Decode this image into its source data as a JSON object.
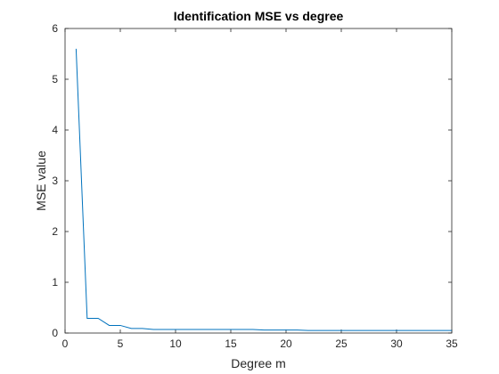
{
  "chart_data": {
    "type": "line",
    "title": "Identification MSE vs degree",
    "xlabel": "Degree m",
    "ylabel": "MSE value",
    "xlim": [
      0,
      35
    ],
    "ylim": [
      0,
      6
    ],
    "xticks": [
      0,
      5,
      10,
      15,
      20,
      25,
      30,
      35
    ],
    "yticks": [
      0,
      1,
      2,
      3,
      4,
      5,
      6
    ],
    "grid": false,
    "series": [
      {
        "color": "#0072bd",
        "x": [
          1,
          2,
          3,
          4,
          5,
          6,
          7,
          8,
          9,
          10,
          11,
          12,
          13,
          14,
          15,
          16,
          17,
          18,
          19,
          20,
          21,
          22,
          23,
          24,
          25,
          26,
          27,
          28,
          29,
          30,
          31,
          32,
          33,
          34,
          35
        ],
        "y": [
          5.6,
          0.29,
          0.29,
          0.15,
          0.15,
          0.09,
          0.09,
          0.07,
          0.07,
          0.07,
          0.07,
          0.07,
          0.07,
          0.07,
          0.07,
          0.07,
          0.07,
          0.06,
          0.06,
          0.06,
          0.06,
          0.05,
          0.05,
          0.05,
          0.05,
          0.05,
          0.05,
          0.05,
          0.05,
          0.05,
          0.05,
          0.05,
          0.05,
          0.05,
          0.05
        ]
      }
    ]
  }
}
